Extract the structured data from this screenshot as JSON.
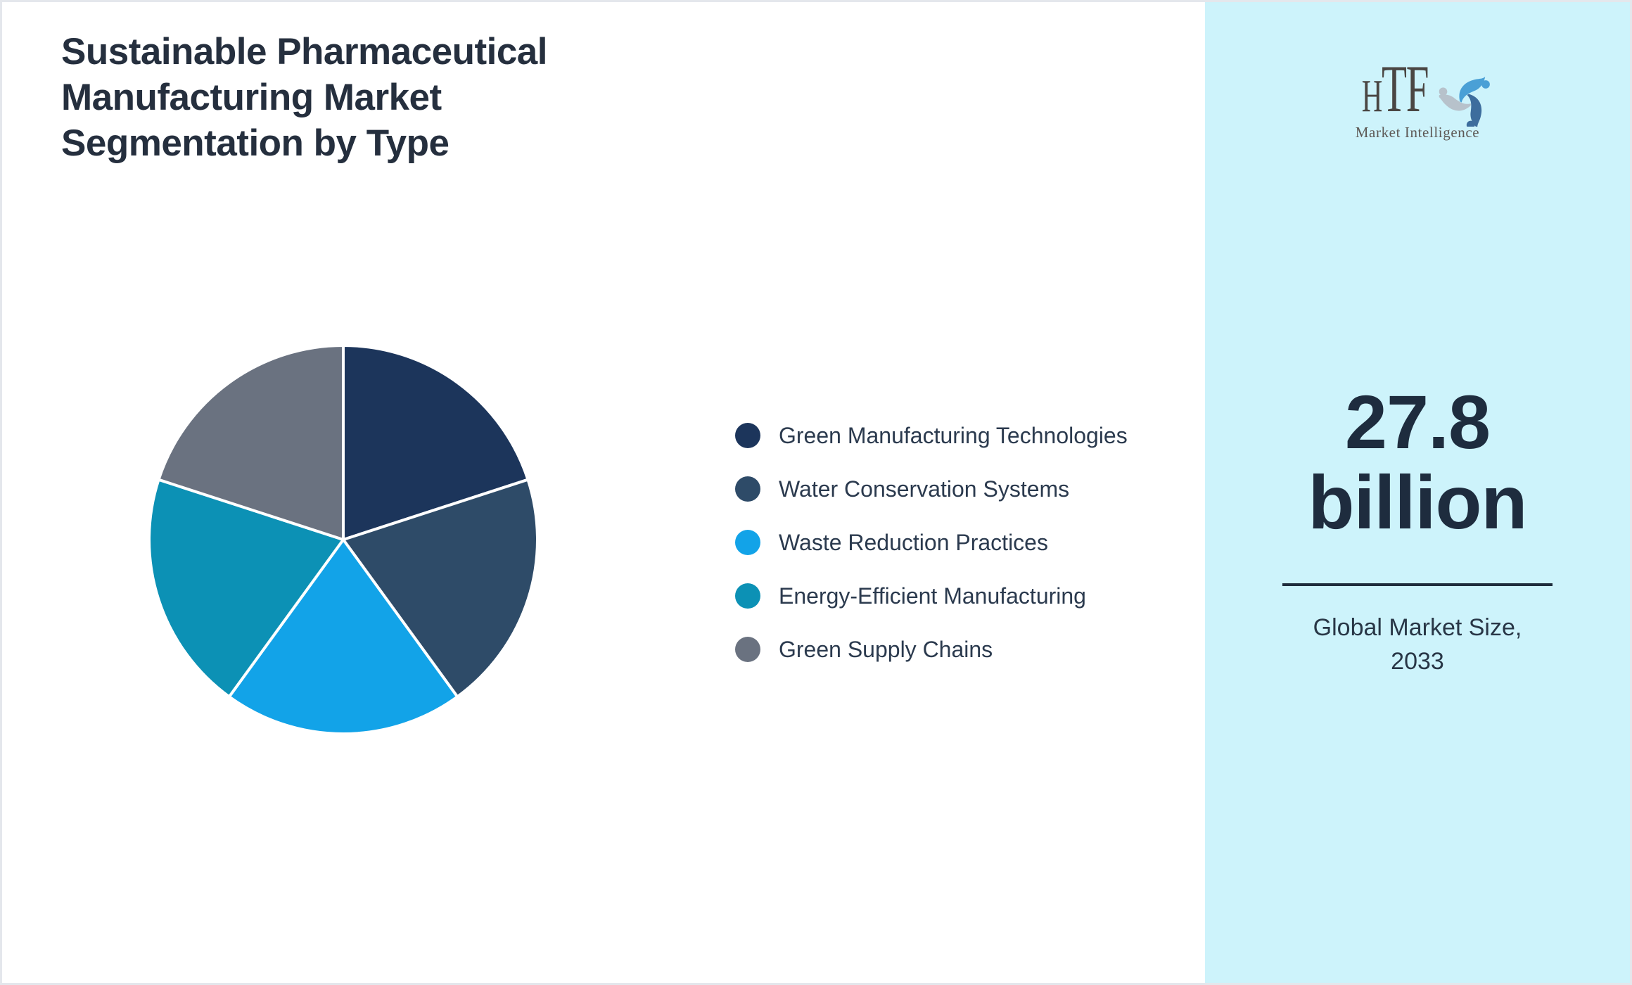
{
  "header": {
    "title_lines": [
      "Sustainable Pharmaceutical",
      "Manufacturing Market",
      "Segmentation by Type"
    ]
  },
  "chart_data": {
    "type": "pie",
    "title": "Sustainable Pharmaceutical Manufacturing Market Segmentation by Type",
    "labels": [
      "Green Manufacturing Technologies",
      "Water Conservation Systems",
      "Waste Reduction Practices",
      "Energy-Efficient Manufacturing",
      "Green Supply Chains"
    ],
    "values": [
      20,
      20,
      20,
      20,
      20
    ],
    "unit": "percent-of-whole",
    "colors": [
      "#1c355b",
      "#2e4b68",
      "#12a3e8",
      "#0c91b5",
      "#6a7280"
    ],
    "start_angle_deg": 0,
    "direction": "clockwise",
    "slice_border_color": "#ffffff",
    "slice_border_width": 4,
    "legend_position": "right"
  },
  "panel": {
    "background": "#cdf3fb",
    "divider_color": "#1e2c3c",
    "logo": {
      "h": "H",
      "tf": "TF",
      "subtitle": "Market Intelligence",
      "swirl_colors": [
        "#4aa0d6",
        "#3d6d9d",
        "#b7c2cb"
      ]
    },
    "market_size_value": "27.8",
    "market_size_unit": "billion",
    "caption_lines": [
      "Global Market Size,",
      "2033"
    ]
  }
}
